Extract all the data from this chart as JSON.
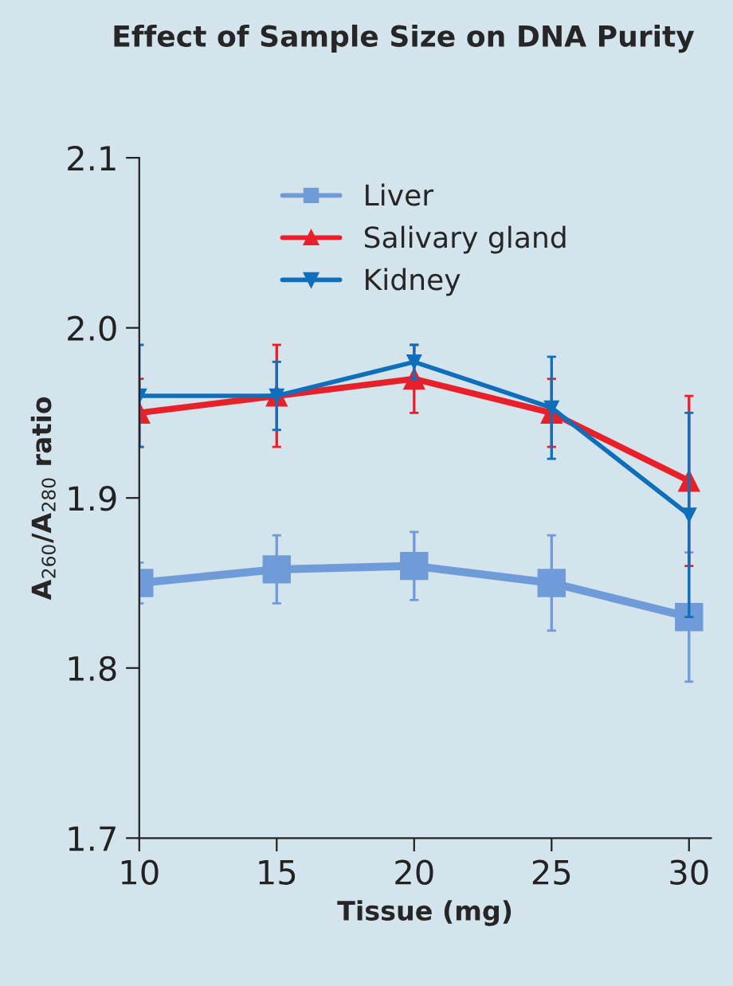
{
  "chart_data": {
    "type": "line",
    "title": "Effect of Sample Size on DNA Purity",
    "xlabel": "Tissue (mg)",
    "ylabel": "A$_{260}$/A$_{280}$ ratio",
    "x": [
      10,
      15,
      20,
      25,
      30
    ],
    "series": [
      {
        "name": "Liver",
        "color": "#6f9bd8",
        "marker": "square",
        "values": [
          1.85,
          1.858,
          1.86,
          1.85,
          1.83
        ],
        "errors": [
          0.012,
          0.02,
          0.02,
          0.028,
          0.038
        ]
      },
      {
        "name": "Salivary gland",
        "color": "#e8202a",
        "marker": "triangle",
        "values": [
          1.95,
          1.96,
          1.97,
          1.95,
          1.91
        ],
        "errors": [
          0.02,
          0.03,
          0.02,
          0.02,
          0.05
        ]
      },
      {
        "name": "Kidney",
        "color": "#0f6fba",
        "marker": "triangle_down",
        "values": [
          1.96,
          1.96,
          1.98,
          1.953,
          1.89
        ],
        "errors": [
          0.03,
          0.02,
          0.01,
          0.03,
          0.06
        ]
      }
    ],
    "xlim": [
      10,
      30.8
    ],
    "xticks": [
      10,
      15,
      20,
      25,
      30
    ],
    "ylim": [
      1.7,
      2.1
    ],
    "yticks": [
      {
        "value": 1.7,
        "label": "1.7"
      },
      {
        "value": 1.8,
        "label": "1.8"
      },
      {
        "value": 1.9,
        "label": "1.9"
      },
      {
        "value": 2.0,
        "label": "2.0"
      },
      {
        "value": 2.1,
        "label": "2.1"
      }
    ],
    "legend": "top",
    "grid": false,
    "line_style": "solid"
  }
}
